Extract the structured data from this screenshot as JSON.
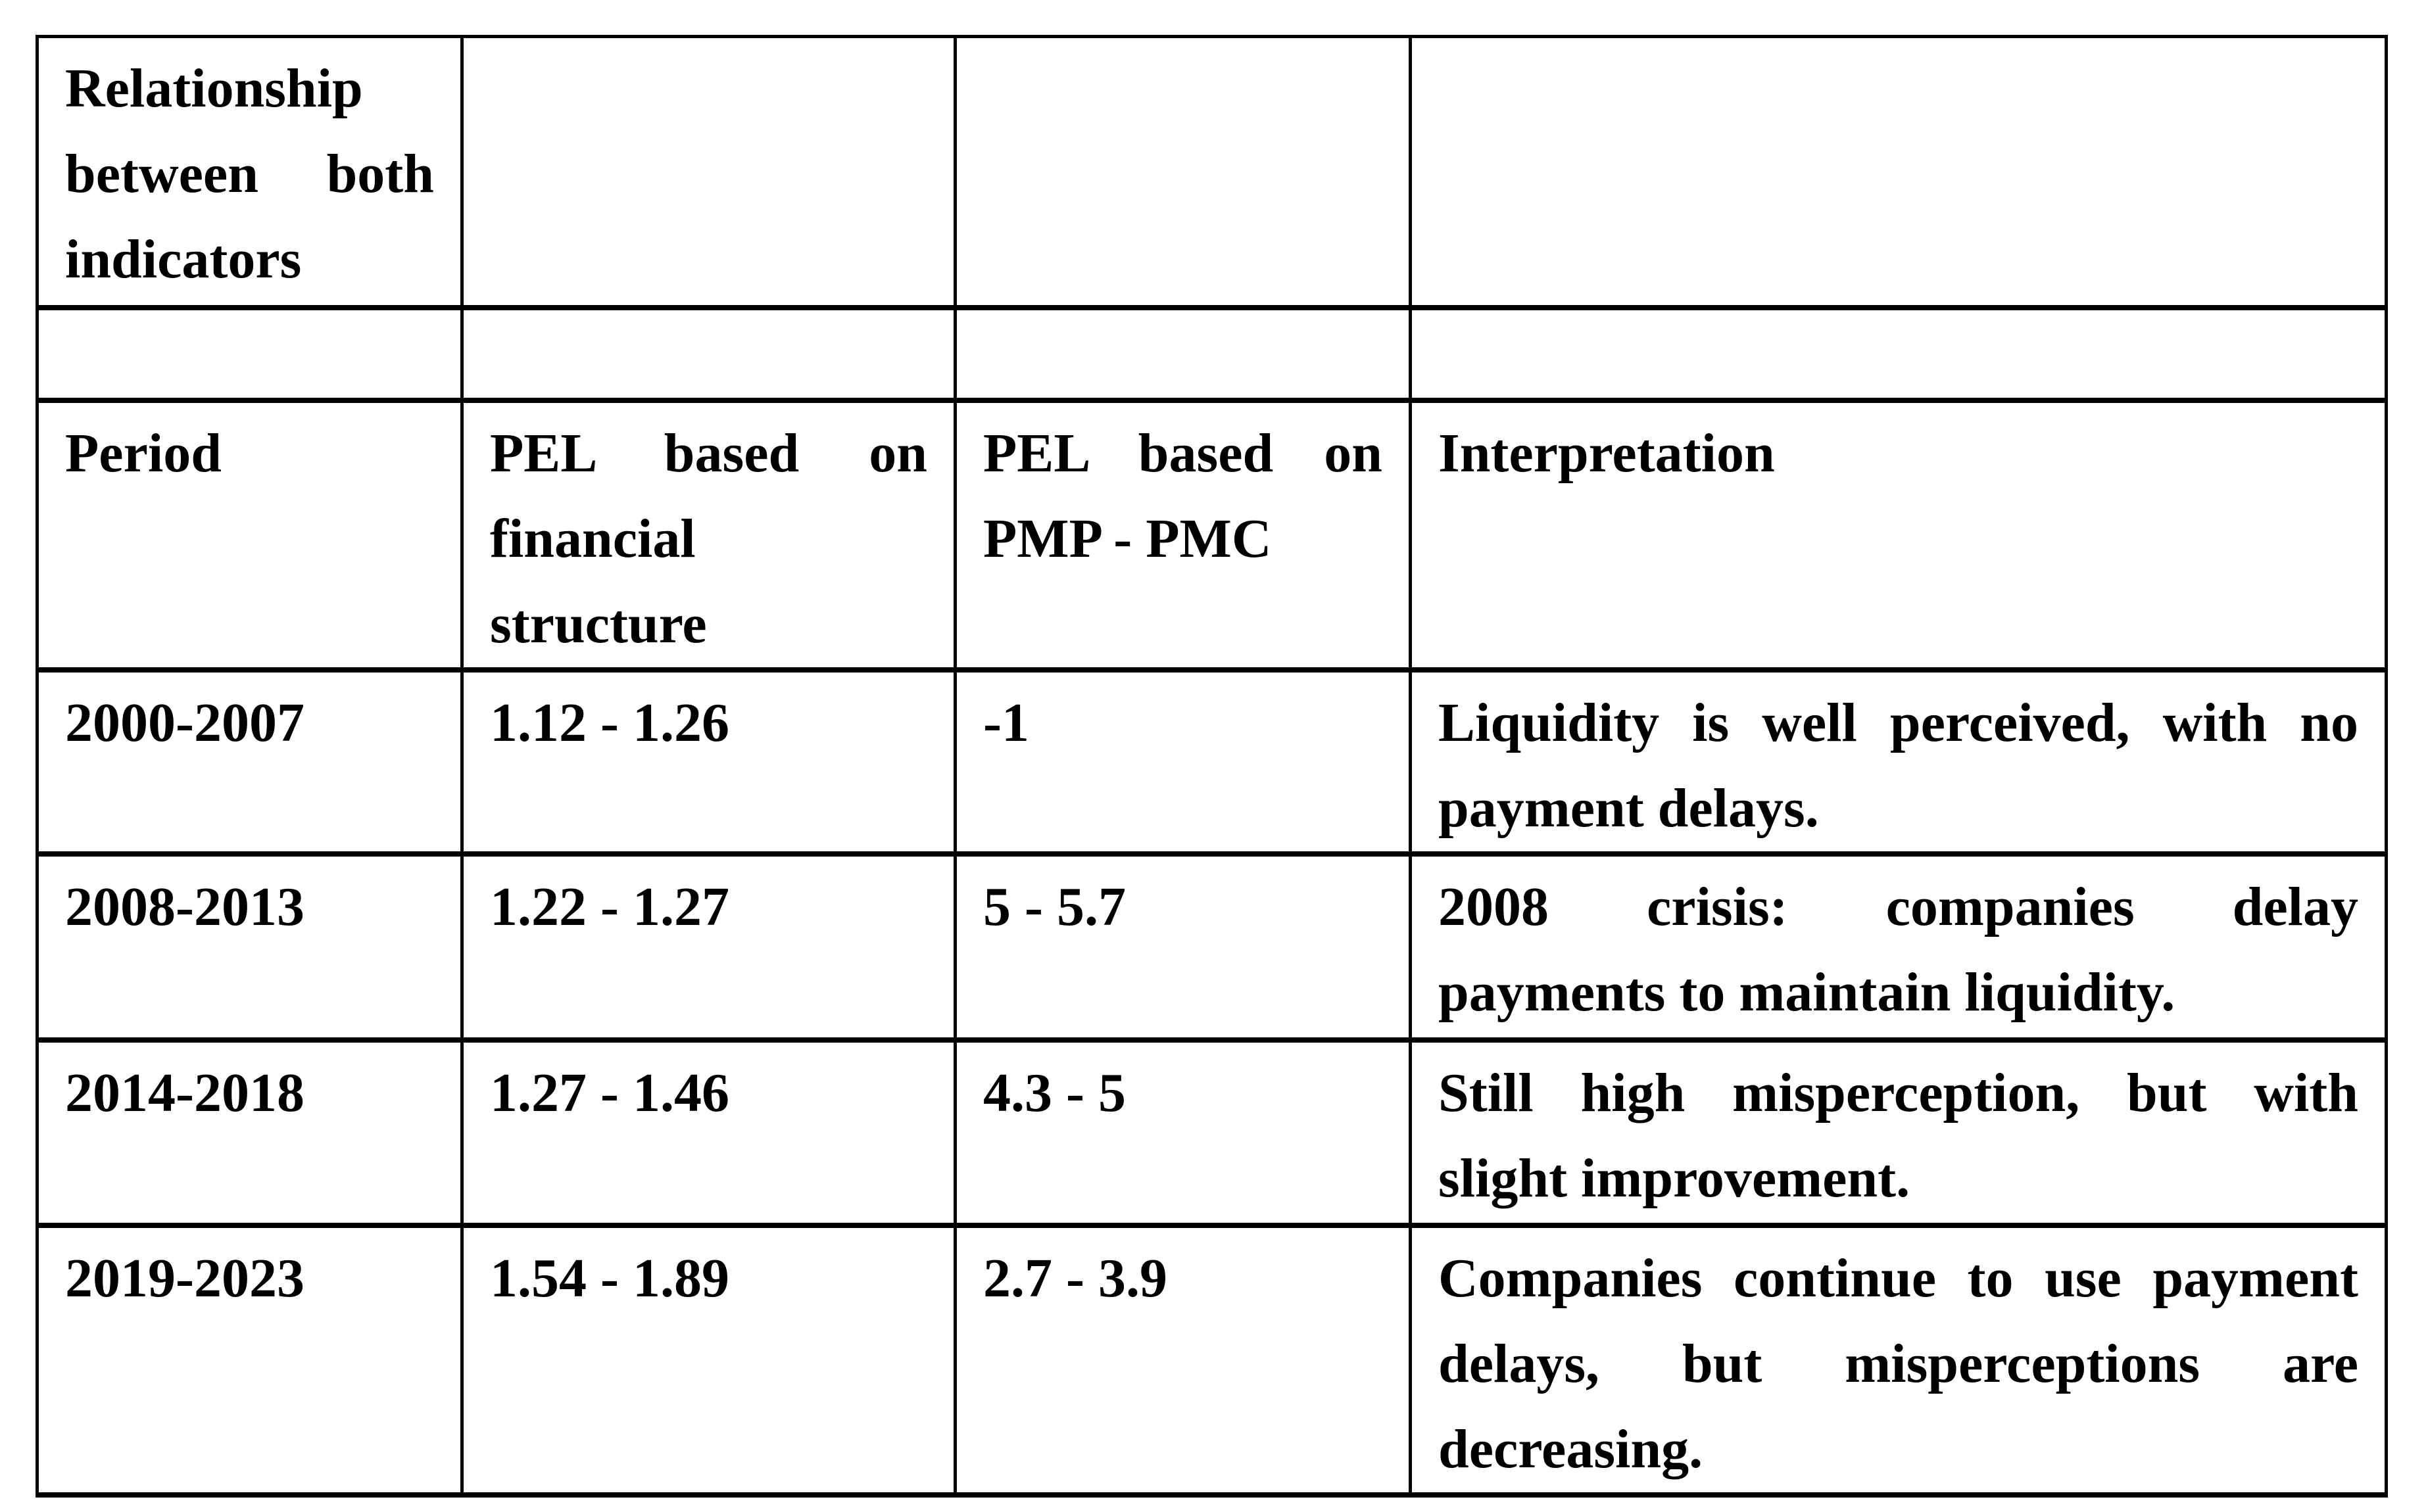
{
  "page": {
    "background_color": "#ffffff",
    "text_color": "#000000",
    "border_color": "#000000"
  },
  "table": {
    "relationship_header": "Relationship\nbetween both\nindicators",
    "columns": [
      {
        "label": "Period"
      },
      {
        "label": "PEL based on\nfinancial\nstructure"
      },
      {
        "label": "PEL based on\nPMP - PMC"
      },
      {
        "label": "Interpretation"
      }
    ],
    "rows": [
      {
        "period": "2000-2007",
        "pel_financial_structure": "1.12 - 1.26",
        "pel_pmp_pmc": "-1",
        "interpretation": "Liquidity is well perceived, with no\npayment delays."
      },
      {
        "period": "2008-2013",
        "pel_financial_structure": "1.22 - 1.27",
        "pel_pmp_pmc": "5 - 5.7",
        "interpretation": "2008 crisis: companies delay\npayments to maintain liquidity."
      },
      {
        "period": "2014-2018",
        "pel_financial_structure": "1.27 - 1.46",
        "pel_pmp_pmc": "4.3 - 5",
        "interpretation": "Still high misperception, but with\nslight improvement."
      },
      {
        "period": "2019-2023",
        "pel_financial_structure": "1.54 - 1.89",
        "pel_pmp_pmc": "2.7 - 3.9",
        "interpretation": "Companies continue to use payment\ndelays, but misperceptions are\ndecreasing."
      }
    ]
  }
}
